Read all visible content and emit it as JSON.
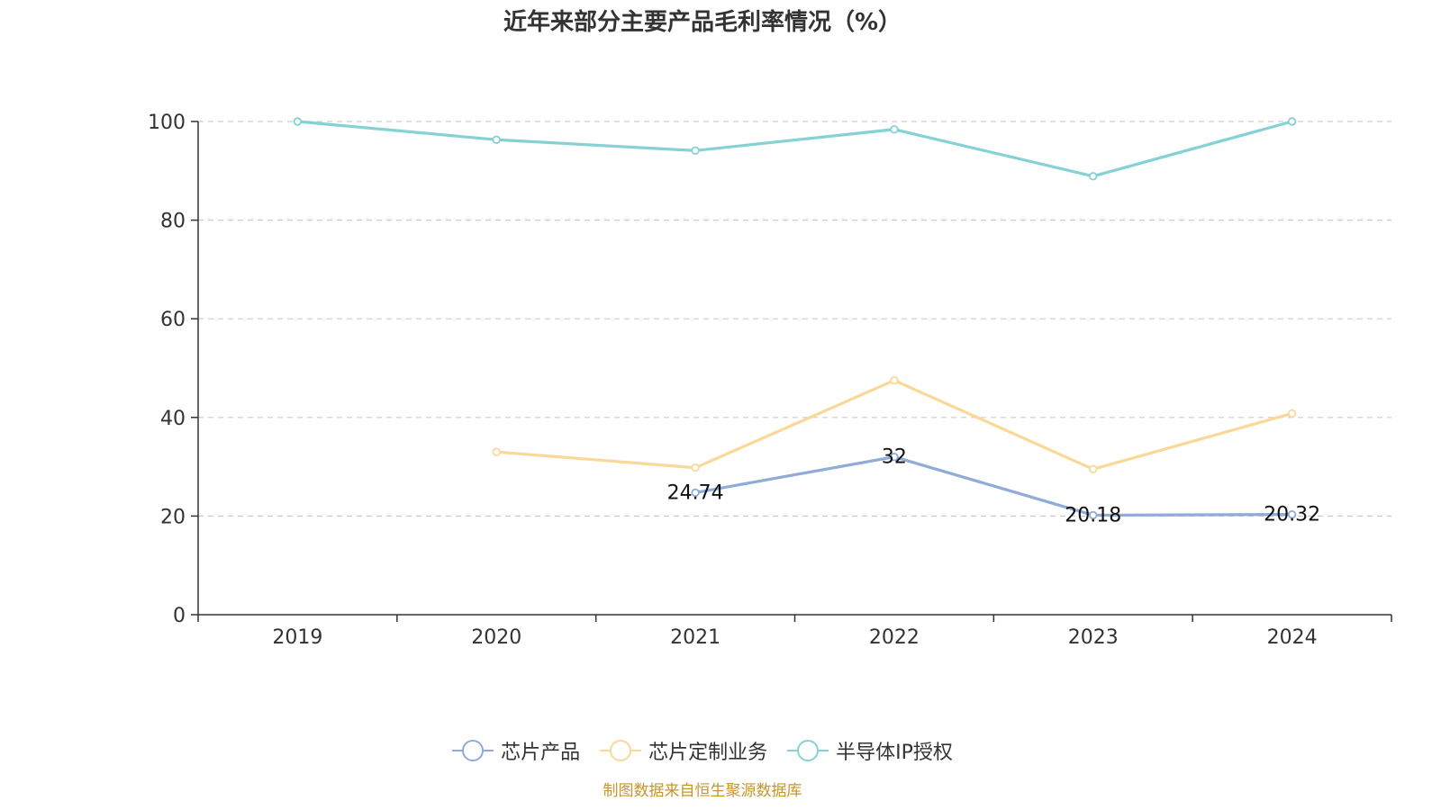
{
  "chart_data": {
    "type": "line",
    "title": "近年来部分主要产品毛利率情况（%）",
    "categories": [
      "2019",
      "2020",
      "2021",
      "2022",
      "2023",
      "2024"
    ],
    "ylim": [
      0,
      100
    ],
    "yticks": [
      0,
      20,
      40,
      60,
      80,
      100
    ],
    "grid": true,
    "legend_position": "bottom",
    "series": [
      {
        "name": "芯片产品",
        "color": "#8fabd8",
        "values": [
          null,
          null,
          24.74,
          32,
          20.18,
          20.32
        ],
        "labels": [
          null,
          null,
          "24.74",
          "32",
          "20.18",
          "20.32"
        ]
      },
      {
        "name": "芯片定制业务",
        "color": "#f9d898",
        "values": [
          null,
          33,
          29.8,
          47.5,
          29.5,
          40.8
        ],
        "labels": [
          null,
          null,
          null,
          null,
          null,
          null
        ]
      },
      {
        "name": "半导体IP授权",
        "color": "#84d2d4",
        "values": [
          100,
          96.3,
          94.1,
          98.4,
          88.9,
          100
        ],
        "labels": [
          null,
          null,
          null,
          null,
          null,
          null
        ]
      }
    ]
  },
  "source_note": "制图数据来自恒生聚源数据库"
}
